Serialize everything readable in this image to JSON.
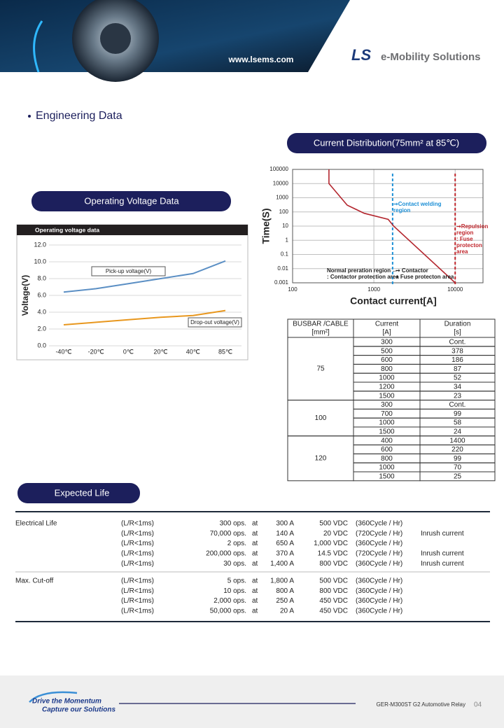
{
  "header": {
    "url": "www.lsems.com",
    "brand": "LS",
    "brand_text": "e-Mobility Solutions"
  },
  "section_title": "Engineering Data",
  "buttons": {
    "current_distribution": "Current Distribution(75mm² at 85℃)",
    "operating_voltage": "Operating Voltage Data",
    "expected_life": "Expected Life"
  },
  "chart_data": [
    {
      "type": "line",
      "title": "Operating voltage data",
      "y_label": "Voltage(V)",
      "categories": [
        "-40℃",
        "-20℃",
        "0℃",
        "20℃",
        "40℃",
        "85℃"
      ],
      "series": [
        {
          "name": "Pick-up voltage(V)",
          "color": "#5b8fc4",
          "values": [
            6.4,
            6.8,
            7.4,
            8.0,
            8.6,
            10.1
          ]
        },
        {
          "name": "Drop-out voltage(V)",
          "color": "#e8971e",
          "values": [
            2.5,
            2.8,
            3.1,
            3.4,
            3.6,
            4.2
          ]
        }
      ],
      "ylim": [
        0,
        12
      ],
      "yticks": [
        {
          "value": 0,
          "label": "0.0"
        },
        {
          "value": 2,
          "label": "2.0"
        },
        {
          "value": 4,
          "label": "4.0"
        },
        {
          "value": 6,
          "label": "6.0"
        },
        {
          "value": 8,
          "label": "8.0"
        },
        {
          "value": 10,
          "label": "10.0"
        },
        {
          "value": 12,
          "label": "12.0"
        }
      ],
      "grid": true
    },
    {
      "type": "logline",
      "x_label": "Contact current[A]",
      "y_label": "Time(S)",
      "log_x": true,
      "log_y": true,
      "x": [
        280,
        280,
        470,
        760,
        1500,
        1750,
        10000
      ],
      "values": [
        100000,
        10000,
        300,
        80,
        30,
        10,
        0.001
      ],
      "color": "#b3262e",
      "xlim": [
        100,
        22000
      ],
      "xticks": [
        100,
        1000,
        10000
      ],
      "ylim": [
        0.001,
        100000
      ],
      "yticks": [
        0.001,
        0.01,
        0.1,
        1,
        10,
        100,
        1000,
        10000,
        100000
      ],
      "grid": true,
      "vlines": [
        {
          "x": 1700,
          "color": "#1e90d6"
        },
        {
          "x": 10000,
          "color": "#c0272d"
        }
      ],
      "annotations": [
        {
          "lines": [
            "➞Contact welding",
            "region"
          ],
          "color": "#1e90d6"
        },
        {
          "lines": [
            "➞Repulsion",
            "region",
            ": Fuse",
            "protecton",
            "area"
          ],
          "color": "#c0272d"
        },
        {
          "lines": [
            "Normal preration region ←",
            ": Contactor protection area"
          ],
          "color": "#222222"
        },
        {
          "lines": [
            "➞ Contactor",
            "+ Fuse protecton area"
          ],
          "color": "#222222"
        }
      ]
    }
  ],
  "spec_table": {
    "header": [
      [
        "BUSBAR /CABLE",
        "[mm²]"
      ],
      [
        "Current",
        "[A]"
      ],
      [
        "Duration",
        "[s]"
      ]
    ],
    "groups": [
      {
        "busbar": "75",
        "rows": [
          [
            "300",
            "Cont."
          ],
          [
            "500",
            "378"
          ],
          [
            "600",
            "186"
          ],
          [
            "800",
            "87"
          ],
          [
            "1000",
            "52"
          ],
          [
            "1200",
            "34"
          ],
          [
            "1500",
            "23"
          ]
        ]
      },
      {
        "busbar": "100",
        "rows": [
          [
            "300",
            "Cont."
          ],
          [
            "700",
            "99"
          ],
          [
            "1000",
            "58"
          ],
          [
            "1500",
            "24"
          ]
        ]
      },
      {
        "busbar": "120",
        "rows": [
          [
            "400",
            "1400"
          ],
          [
            "600",
            "220"
          ],
          [
            "800",
            "99"
          ],
          [
            "1000",
            "70"
          ],
          [
            "1500",
            "25"
          ]
        ]
      }
    ]
  },
  "expected_life": {
    "groups": [
      {
        "label": "Electrical Life",
        "rows": [
          [
            "(L/R<1ms)",
            "300 ops.",
            "at",
            "300 A",
            "500 VDC",
            "(360Cycle / Hr)"
          ],
          [
            "(L/R<1ms)",
            "70,000 ops.",
            "at",
            "140 A",
            "20 VDC",
            "(720Cycle / Hr)",
            "Inrush current"
          ],
          [
            "(L/R<1ms)",
            "2 ops.",
            "at",
            "650 A",
            "1,000 VDC",
            "(360Cycle / Hr)"
          ],
          [
            "(L/R<1ms)",
            "200,000 ops.",
            "at",
            "370 A",
            "14.5 VDC",
            "(720Cycle / Hr)",
            "Inrush current"
          ],
          [
            "(L/R<1ms)",
            "30 ops.",
            "at",
            "1,400 A",
            "800 VDC",
            "(360Cycle / Hr)",
            "Inrush current"
          ]
        ]
      },
      {
        "label": "Max. Cut-off",
        "rows": [
          [
            "(L/R<1ms)",
            "5 ops.",
            "at",
            "1,800 A",
            "500 VDC",
            "(360Cycle / Hr)"
          ],
          [
            "(L/R<1ms)",
            "10 ops.",
            "at",
            "800 A",
            "800 VDC",
            "(360Cycle / Hr)"
          ],
          [
            "(L/R<1ms)",
            "2,000 ops.",
            "at",
            "250 A",
            "450 VDC",
            "(360Cycle / Hr)"
          ],
          [
            "(L/R<1ms)",
            "50,000 ops.",
            "at",
            "20 A",
            "450 VDC",
            "(360Cycle / Hr)"
          ]
        ]
      }
    ]
  },
  "footer": {
    "slogan_1": "Drive the Momentum",
    "slogan_2": "Capture our Solutions",
    "doc_name": "GER-M300ST G2 Automotive Relay",
    "page": "04"
  }
}
